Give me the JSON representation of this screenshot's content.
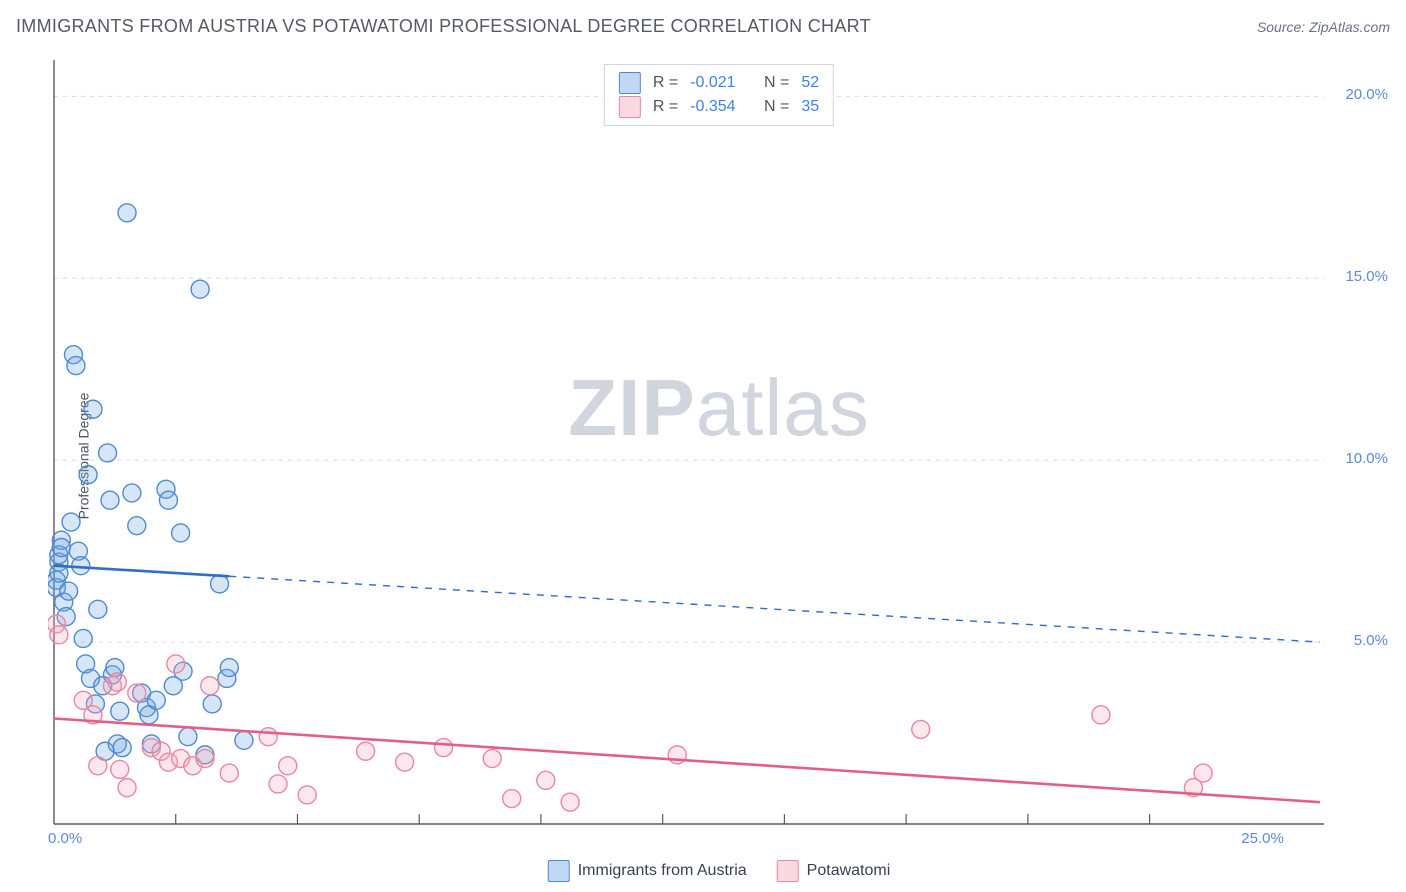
{
  "header": {
    "title": "IMMIGRANTS FROM AUSTRIA VS POTAWATOMI PROFESSIONAL DEGREE CORRELATION CHART",
    "source_prefix": "Source: ",
    "source_name": "ZipAtlas.com"
  },
  "watermark": {
    "zip": "ZIP",
    "atlas": "atlas"
  },
  "chart": {
    "type": "scatter",
    "background_color": "#ffffff",
    "grid_color": "#d7dbe2",
    "axis_color": "#555a63",
    "tick_label_color": "#5b8bd4",
    "y_label": "Professional Degree",
    "y_label_fontsize": 14,
    "tick_label_fontsize": 15,
    "xlim": [
      0,
      26
    ],
    "ylim": [
      0,
      21
    ],
    "x_ticks": [
      0.0,
      25.0
    ],
    "x_tick_labels": [
      "0.0%",
      "25.0%"
    ],
    "x_minor_ticks": [
      2.5,
      5.0,
      7.5,
      10.0,
      12.5,
      15.0,
      17.5,
      20.0,
      22.5
    ],
    "y_ticks": [
      5.0,
      10.0,
      15.0,
      20.0
    ],
    "y_tick_labels": [
      "5.0%",
      "10.0%",
      "15.0%",
      "20.0%"
    ],
    "marker_radius": 9,
    "marker_fill_opacity": 0.28,
    "marker_stroke_width": 1.4,
    "series": [
      {
        "name": "Immigrants from Austria",
        "color": "#6ea6e4",
        "stroke": "#4f8ad0",
        "line_color": "#2f6fc7",
        "line_width": 2.6,
        "r": "-0.021",
        "n": "52",
        "trend": {
          "x1": 0,
          "y1": 7.1,
          "x2": 26,
          "y2": 5.0,
          "solid_until_x": 3.6
        },
        "points": [
          [
            0.05,
            6.7
          ],
          [
            0.05,
            6.5
          ],
          [
            0.1,
            7.2
          ],
          [
            0.1,
            7.4
          ],
          [
            0.1,
            6.9
          ],
          [
            0.15,
            7.8
          ],
          [
            0.15,
            7.6
          ],
          [
            0.2,
            6.1
          ],
          [
            0.25,
            5.7
          ],
          [
            0.3,
            6.4
          ],
          [
            0.35,
            8.3
          ],
          [
            0.4,
            12.9
          ],
          [
            0.45,
            12.6
          ],
          [
            0.5,
            7.5
          ],
          [
            0.55,
            7.1
          ],
          [
            0.6,
            5.1
          ],
          [
            0.65,
            4.4
          ],
          [
            0.7,
            9.6
          ],
          [
            0.75,
            4.0
          ],
          [
            0.8,
            11.4
          ],
          [
            0.85,
            3.3
          ],
          [
            0.9,
            5.9
          ],
          [
            1.0,
            3.8
          ],
          [
            1.05,
            2.0
          ],
          [
            1.1,
            10.2
          ],
          [
            1.15,
            8.9
          ],
          [
            1.2,
            4.1
          ],
          [
            1.25,
            4.3
          ],
          [
            1.3,
            2.2
          ],
          [
            1.35,
            3.1
          ],
          [
            1.4,
            2.1
          ],
          [
            1.5,
            16.8
          ],
          [
            1.6,
            9.1
          ],
          [
            1.7,
            8.2
          ],
          [
            1.8,
            3.6
          ],
          [
            1.9,
            3.2
          ],
          [
            1.95,
            3.0
          ],
          [
            2.0,
            2.2
          ],
          [
            2.1,
            3.4
          ],
          [
            2.3,
            9.2
          ],
          [
            2.35,
            8.9
          ],
          [
            2.45,
            3.8
          ],
          [
            2.6,
            8.0
          ],
          [
            2.65,
            4.2
          ],
          [
            2.75,
            2.4
          ],
          [
            3.0,
            14.7
          ],
          [
            3.1,
            1.9
          ],
          [
            3.25,
            3.3
          ],
          [
            3.4,
            6.6
          ],
          [
            3.55,
            4.0
          ],
          [
            3.6,
            4.3
          ],
          [
            3.9,
            2.3
          ]
        ]
      },
      {
        "name": "Potawatomi",
        "color": "#f3a8bb",
        "stroke": "#e986a2",
        "line_color": "#e45f88",
        "line_width": 2.6,
        "r": "-0.354",
        "n": "35",
        "trend": {
          "x1": 0,
          "y1": 2.9,
          "x2": 26,
          "y2": 0.6,
          "solid_until_x": 26
        },
        "points": [
          [
            0.05,
            5.5
          ],
          [
            0.1,
            5.2
          ],
          [
            0.6,
            3.4
          ],
          [
            0.8,
            3.0
          ],
          [
            0.9,
            1.6
          ],
          [
            1.2,
            3.8
          ],
          [
            1.3,
            3.9
          ],
          [
            1.35,
            1.5
          ],
          [
            1.5,
            1.0
          ],
          [
            1.7,
            3.6
          ],
          [
            2.0,
            2.1
          ],
          [
            2.2,
            2.0
          ],
          [
            2.35,
            1.7
          ],
          [
            2.5,
            4.4
          ],
          [
            2.6,
            1.8
          ],
          [
            2.85,
            1.6
          ],
          [
            3.1,
            1.8
          ],
          [
            3.2,
            3.8
          ],
          [
            3.6,
            1.4
          ],
          [
            4.4,
            2.4
          ],
          [
            4.6,
            1.1
          ],
          [
            4.8,
            1.6
          ],
          [
            5.2,
            0.8
          ],
          [
            6.4,
            2.0
          ],
          [
            7.2,
            1.7
          ],
          [
            8.0,
            2.1
          ],
          [
            9.0,
            1.8
          ],
          [
            9.4,
            0.7
          ],
          [
            10.1,
            1.2
          ],
          [
            10.6,
            0.6
          ],
          [
            12.8,
            1.9
          ],
          [
            17.8,
            2.6
          ],
          [
            21.5,
            3.0
          ],
          [
            23.4,
            1.0
          ],
          [
            23.6,
            1.4
          ]
        ]
      }
    ]
  },
  "legend_top": {
    "r_label": "R  =",
    "n_label": "N  ="
  },
  "legend_bottom": {
    "items": [
      "Immigrants from Austria",
      "Potawatomi"
    ]
  }
}
